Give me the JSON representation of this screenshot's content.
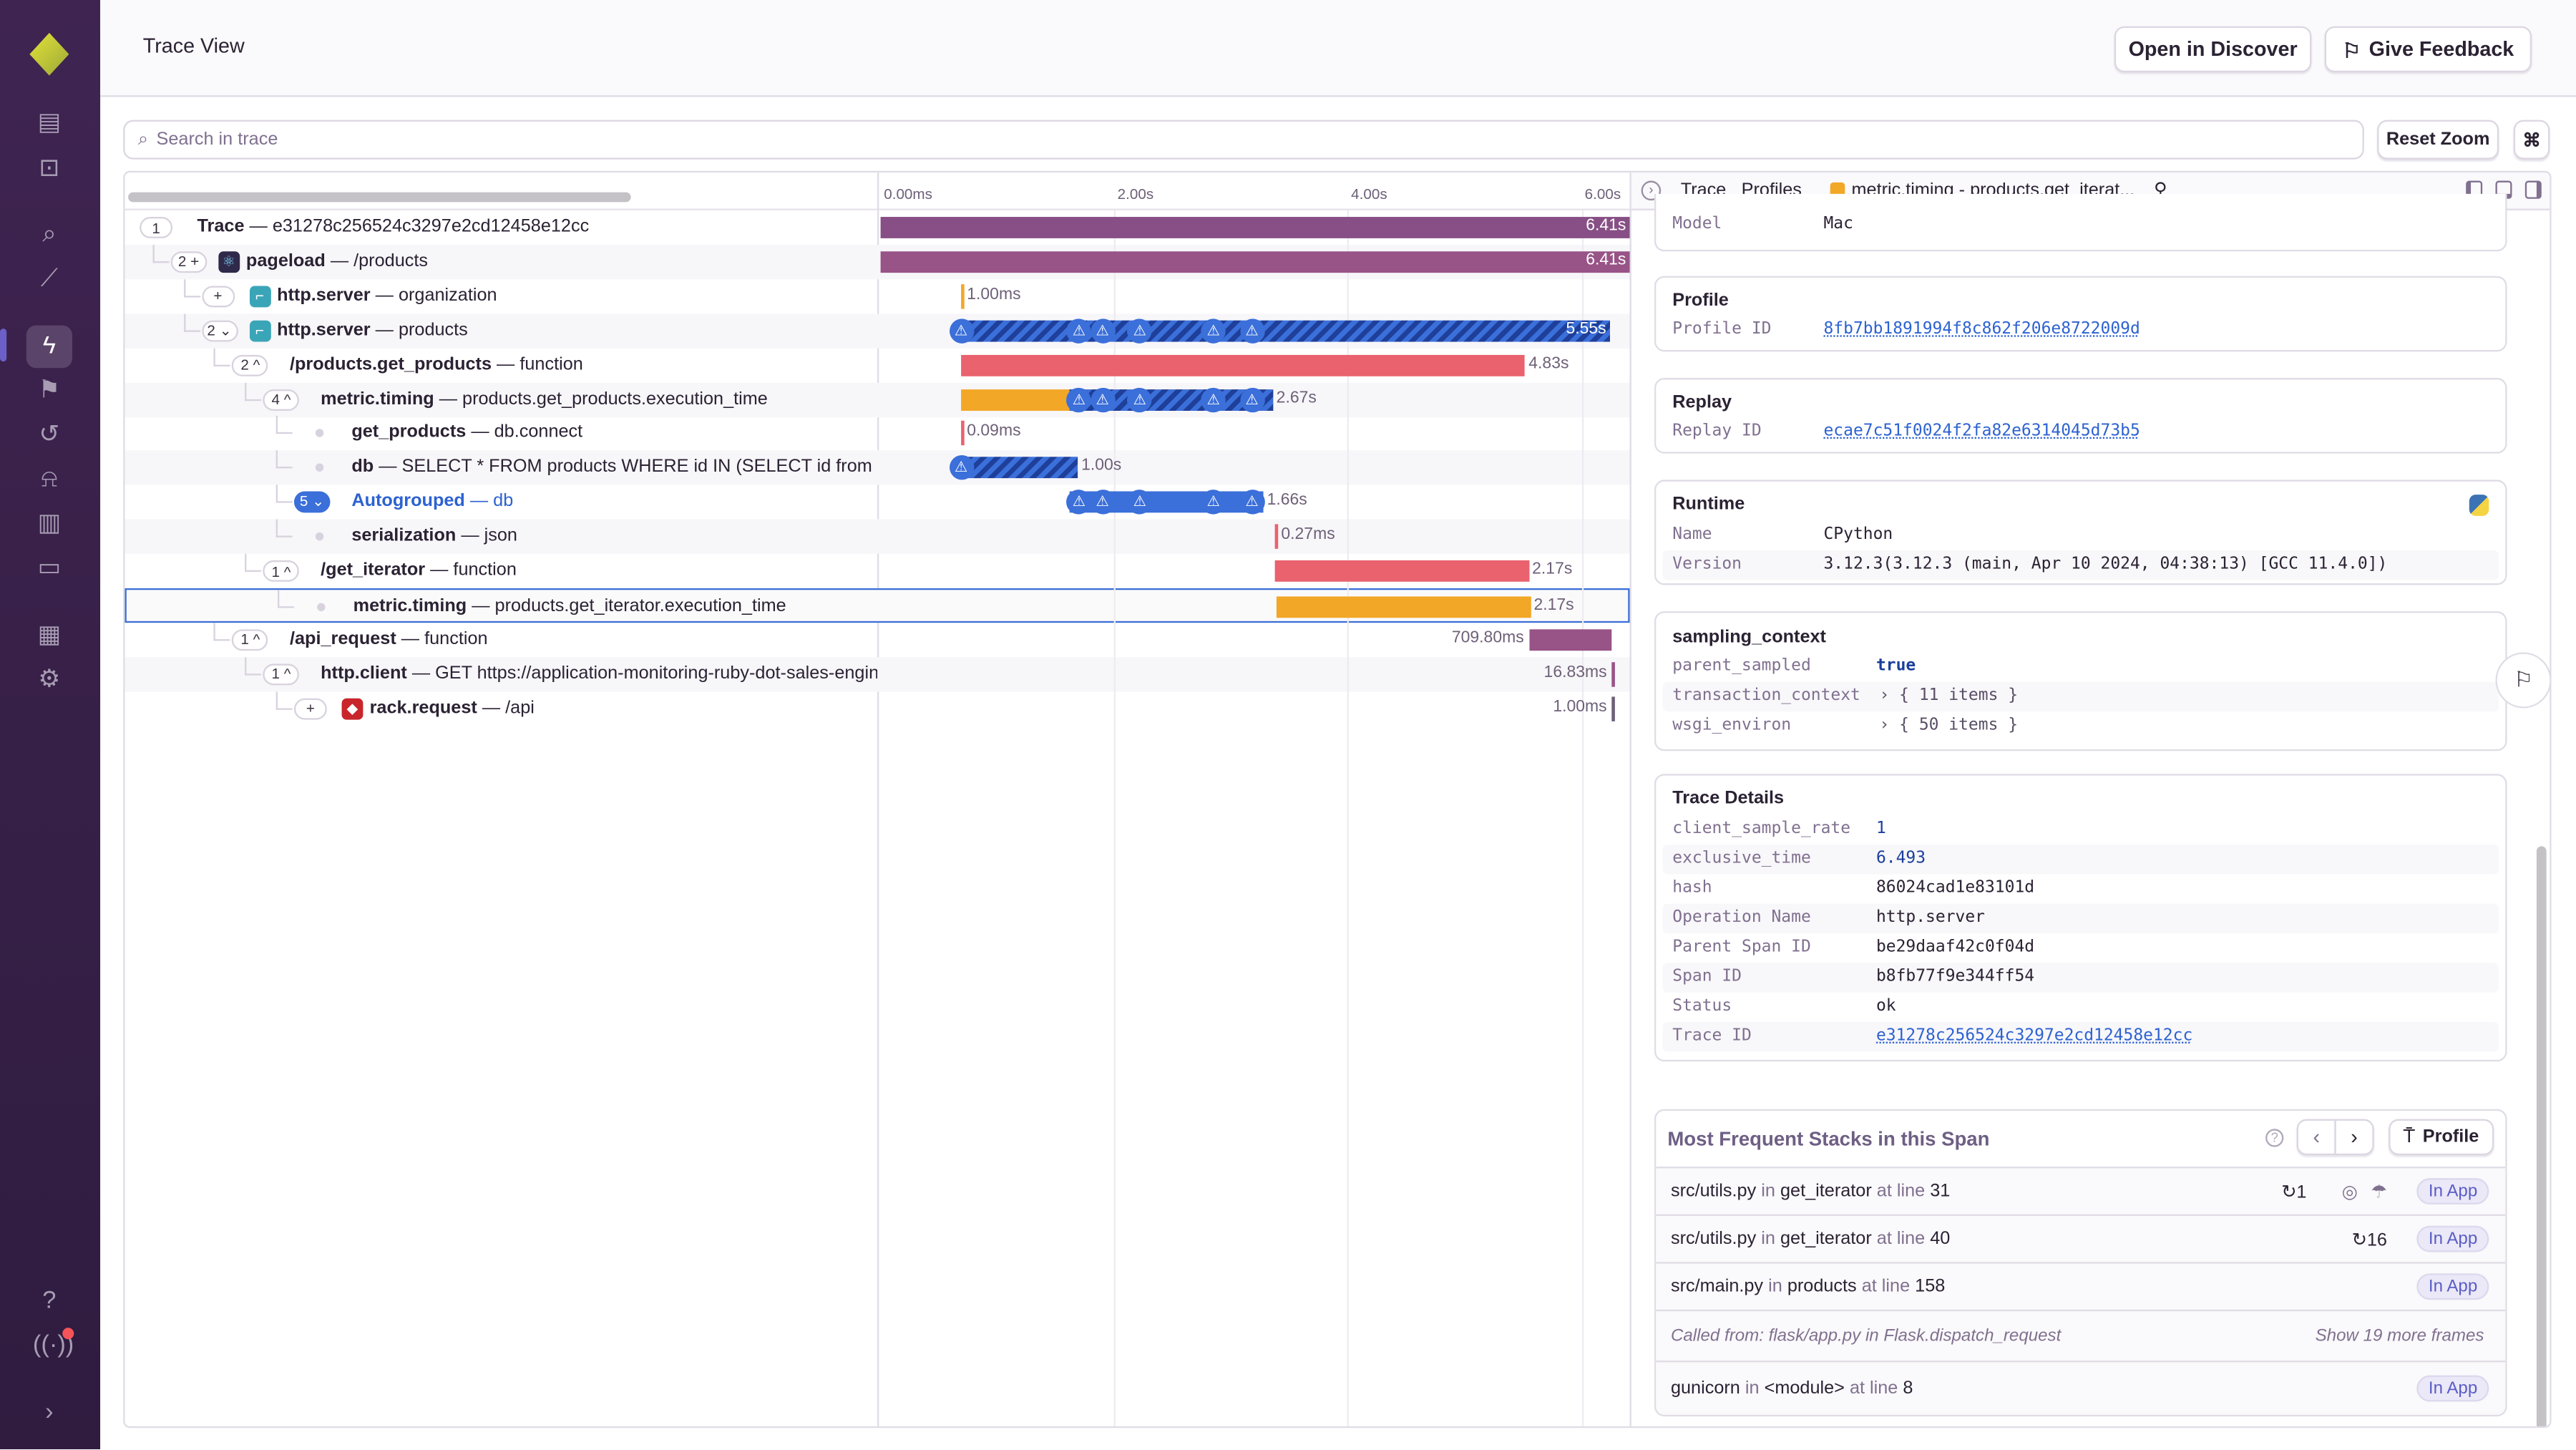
{
  "header": {
    "title": "Trace View",
    "open_discover": "Open in Discover",
    "give_feedback": "Give Feedback"
  },
  "toolbar": {
    "search_placeholder": "Search in trace",
    "reset_zoom": "Reset Zoom",
    "shortcut": "⌘"
  },
  "timeline": {
    "ticks": [
      {
        "s": 0,
        "label": "0.00ms"
      },
      {
        "s": 2,
        "label": "2.00s"
      },
      {
        "s": 4,
        "label": "4.00s"
      },
      {
        "s": 6,
        "label": "6.00s"
      }
    ],
    "max_s": 6.41
  },
  "colors": {
    "purple_dark": "#874f85",
    "purple": "#985387",
    "red": "#e9626e",
    "orange": "#f2a727",
    "blue": "#3b6fd9",
    "selected": "#3b6fd9"
  },
  "rows": [
    {
      "depth": 0,
      "badge": "1",
      "op": "Trace",
      "desc": "e31278c256524c3297e2cd12458e12cc",
      "start": 0,
      "dur": 6.41,
      "dur_label": "6.41s",
      "color": "#874f85",
      "label": "inside"
    },
    {
      "depth": 1,
      "badge": "2 +",
      "icon": "react-icon",
      "op": "pageload",
      "desc": "/products",
      "start": 0,
      "dur": 6.41,
      "dur_label": "6.41s",
      "color": "#985387",
      "label": "inside"
    },
    {
      "depth": 2,
      "badge": "+",
      "icon": "flask-icon",
      "op": "http.server",
      "desc": "organization",
      "start": 0.69,
      "dur": 0,
      "dur_label": "1.00ms",
      "color": "#f2a727",
      "label": "right"
    },
    {
      "depth": 2,
      "badge": "2 ⌄",
      "icon": "flask-icon",
      "op": "http.server",
      "desc": "products",
      "start": 0.69,
      "dur": 5.55,
      "dur_label": "5.55s",
      "style": "hatch",
      "label": "inside",
      "warnings": [
        0.69,
        1.7,
        1.9,
        2.22,
        2.85,
        3.18
      ]
    },
    {
      "depth": 3,
      "badge": "2 ^",
      "op": "/products.get_products",
      "desc": "function",
      "start": 0.69,
      "dur": 4.83,
      "dur_label": "4.83s",
      "color": "#e9626e",
      "label": "right"
    },
    {
      "depth": 4,
      "badge": "4 ^",
      "op": "metric.timing",
      "desc": "products.get_products.execution_time",
      "start": 0.69,
      "dur": 2.67,
      "dur_label": "2.67s",
      "color": "#f2a727",
      "hatch_from": 1.62,
      "label": "right",
      "warnings": [
        1.7,
        1.9,
        2.22,
        2.85,
        3.18
      ]
    },
    {
      "depth": 5,
      "leaf": true,
      "op": "get_products",
      "desc": "db.connect",
      "start": 0.69,
      "dur": 0,
      "dur_label": "0.09ms",
      "color": "#e9626e",
      "label": "right"
    },
    {
      "depth": 5,
      "leaf": true,
      "op": "db",
      "desc": "SELECT * FROM products WHERE id IN (SELECT id from products",
      "start": 0.69,
      "dur": 1.0,
      "dur_label": "1.00s",
      "style": "hatch",
      "label": "right",
      "warnings": [
        0.69
      ]
    },
    {
      "depth": 5,
      "badge": "5 ⌄",
      "group": true,
      "op": "Autogrouped",
      "desc": "db",
      "start": 1.62,
      "dur": 1.66,
      "dur_label": "1.66s",
      "color": "#3b6fd9",
      "label": "right",
      "warnings": [
        1.7,
        1.9,
        2.22,
        2.85,
        3.18
      ]
    },
    {
      "depth": 5,
      "leaf": true,
      "op": "serialization",
      "desc": "json",
      "start": 3.38,
      "dur": 0,
      "dur_label": "0.27ms",
      "color": "#e9626e",
      "label": "right"
    },
    {
      "depth": 4,
      "badge": "1 ^",
      "op": "/get_iterator",
      "desc": "function",
      "start": 3.38,
      "dur": 2.17,
      "dur_label": "2.17s",
      "color": "#e9626e",
      "label": "right"
    },
    {
      "depth": 5,
      "leaf": true,
      "selected": true,
      "op": "metric.timing",
      "desc": "products.get_iterator.execution_time",
      "start": 3.38,
      "dur": 2.17,
      "dur_label": "2.17s",
      "color": "#f2a727",
      "label": "right"
    },
    {
      "depth": 3,
      "badge": "1 ^",
      "op": "/api_request",
      "desc": "function",
      "start": 5.55,
      "dur": 0.71,
      "dur_label": "709.80ms",
      "color": "#985387",
      "label": "left"
    },
    {
      "depth": 4,
      "badge": "1 ^",
      "op": "http.client",
      "desc": "GET https://application-monitoring-ruby-dot-sales-engineering",
      "start": 6.26,
      "dur": 0,
      "dur_label": "16.83ms",
      "color": "#985387",
      "label": "left"
    },
    {
      "depth": 5,
      "badge": "+",
      "icon": "ruby-icon",
      "op": "rack.request",
      "desc": "/api",
      "start": 6.26,
      "dur": 0,
      "dur_label": "1.00ms",
      "color": "#6e6078",
      "label": "left"
    }
  ],
  "drawer": {
    "tabs": {
      "trace": "Trace",
      "profiles": "Profiles",
      "active": "metric.timing - products.get_iterat..."
    },
    "model": {
      "key": "Model",
      "value": "Mac"
    },
    "profile": {
      "title": "Profile",
      "key": "Profile ID",
      "value": "8fb7bb1891994f8c862f206e8722009d"
    },
    "replay": {
      "title": "Replay",
      "key": "Replay ID",
      "value": "ecae7c51f0024f2fa82e6314045d73b5"
    },
    "runtime": {
      "title": "Runtime",
      "name_key": "Name",
      "name": "CPython",
      "version_key": "Version",
      "version": "3.12.3(3.12.3 (main, Apr 10 2024, 04:38:13) [GCC 11.4.0])"
    },
    "sampling": {
      "title": "sampling_context",
      "rows": [
        {
          "k": "parent_sampled",
          "v": "true"
        },
        {
          "k": "transaction_context",
          "v": "›  { 11 items }"
        },
        {
          "k": "wsgi_environ",
          "v": "›  { 50 items }"
        }
      ]
    },
    "details": {
      "title": "Trace Details",
      "rows": [
        {
          "k": "client_sample_rate",
          "v": "1",
          "kind": "num"
        },
        {
          "k": "exclusive_time",
          "v": "6.493",
          "kind": "num"
        },
        {
          "k": "hash",
          "v": "86024cad1e83101d"
        },
        {
          "k": "Operation Name",
          "v": "http.server"
        },
        {
          "k": "Parent Span ID",
          "v": "be29daaf42c0f04d"
        },
        {
          "k": "Span ID",
          "v": "b8fb77f9e344ff54"
        },
        {
          "k": "Status",
          "v": "ok"
        },
        {
          "k": "Trace ID",
          "v": "e31278c256524c3297e2cd12458e12cc",
          "kind": "link"
        }
      ]
    },
    "stacks": {
      "title": "Most Frequent Stacks in this Span",
      "profile_btn": "Profile",
      "frames": [
        {
          "file": "src/utils.py",
          "in": "in",
          "fn": "get_iterator",
          "at": "at line",
          "line": "31",
          "count": "1",
          "badge": "In App",
          "extra": true
        },
        {
          "file": "src/utils.py",
          "in": "in",
          "fn": "get_iterator",
          "at": "at line",
          "line": "40",
          "count": "16",
          "badge": "In App"
        },
        {
          "file": "src/main.py",
          "in": "in",
          "fn": "products",
          "at": "at line",
          "line": "158",
          "badge": "In App"
        }
      ],
      "called_from": "Called from: flask/app.py  in  Flask.dispatch_request",
      "show_more": "Show 19 more frames",
      "last": {
        "file": "gunicorn",
        "in": "in",
        "fn": "<module>",
        "at": "at line",
        "line": "8",
        "badge": "In App"
      }
    }
  }
}
